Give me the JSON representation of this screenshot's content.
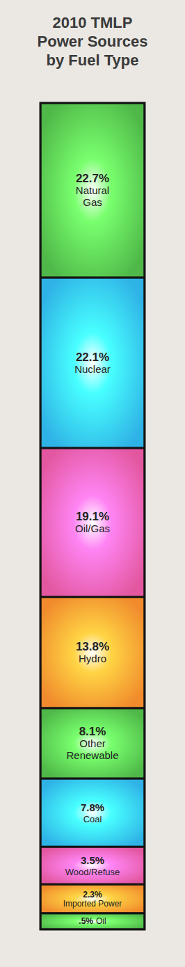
{
  "chart_data": {
    "type": "bar",
    "title": "2010 TMLP Power Sources by Fuel Type",
    "categories": [
      "Natural Gas",
      "Nuclear",
      "Oil/Gas",
      "Hydro",
      "Other Renewable",
      "Coal",
      "Wood/Refuse",
      "Imported Power",
      "Oil"
    ],
    "values": [
      22.7,
      22.1,
      19.1,
      13.8,
      8.1,
      7.8,
      3.5,
      2.3,
      0.5
    ],
    "value_labels": [
      "22.7%",
      "22.1%",
      "19.1%",
      "13.8%",
      "8.1%",
      "7.8%",
      "3.5%",
      "2.3%",
      ".5%"
    ],
    "colors": [
      "#4fb848",
      "#2fb2e6",
      "#e2579f",
      "#f08a2c",
      "#4fb848",
      "#2fb2e6",
      "#e2579f",
      "#f08a2c",
      "#4fb848"
    ],
    "stacked": true,
    "data_labels": true,
    "tick_labels": false
  }
}
